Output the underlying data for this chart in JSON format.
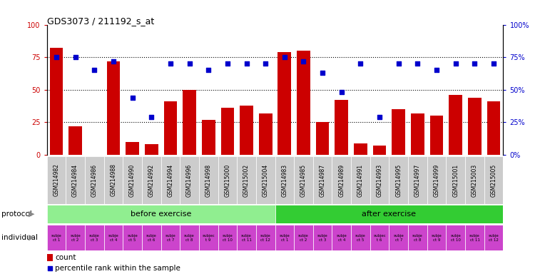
{
  "title": "GDS3073 / 211192_s_at",
  "gsm_labels": [
    "GSM214982",
    "GSM214984",
    "GSM214986",
    "GSM214988",
    "GSM214990",
    "GSM214992",
    "GSM214994",
    "GSM214996",
    "GSM214998",
    "GSM215000",
    "GSM215002",
    "GSM215004",
    "GSM214983",
    "GSM214985",
    "GSM214987",
    "GSM214989",
    "GSM214991",
    "GSM214993",
    "GSM214995",
    "GSM214997",
    "GSM214999",
    "GSM215001",
    "GSM215003",
    "GSM215005"
  ],
  "bar_heights": [
    82,
    22,
    0,
    72,
    10,
    8,
    41,
    50,
    27,
    36,
    38,
    32,
    79,
    80,
    25,
    42,
    9,
    7,
    35,
    32,
    30,
    46,
    44,
    41
  ],
  "dot_values": [
    75,
    75,
    65,
    72,
    44,
    29,
    70,
    70,
    65,
    70,
    70,
    70,
    75,
    72,
    63,
    48,
    70,
    29,
    70,
    70,
    65,
    70,
    70,
    70
  ],
  "individual_labels_before": [
    "subje\nct 1",
    "subje\nct 2",
    "subje\nct 3",
    "subje\nct 4",
    "subje\nct 5",
    "subje\nct 6",
    "subje\nct 7",
    "subje\nct 8",
    "subjec\nt 9",
    "subje\nct 10",
    "subje\nct 11",
    "subje\nct 12"
  ],
  "individual_labels_after": [
    "subje\nct 1",
    "subje\nct 2",
    "subje\nct 3",
    "subje\nct 4",
    "subje\nct 5",
    "subjec\nt 6",
    "subje\nct 7",
    "subje\nct 8",
    "subje\nct 9",
    "subje\nct 10",
    "subje\nct 11",
    "subje\nct 12"
  ],
  "bar_color": "#cc0000",
  "dot_color": "#0000cc",
  "before_exercise_color": "#90ee90",
  "after_exercise_color": "#33cc33",
  "individual_color": "#cc44cc",
  "xticklabel_bg": "#cccccc",
  "ylim": [
    0,
    100
  ],
  "y_ticks": [
    0,
    25,
    50,
    75,
    100
  ],
  "n_before": 12,
  "n_after": 12,
  "figsize": [
    7.71,
    3.84
  ],
  "dpi": 100
}
